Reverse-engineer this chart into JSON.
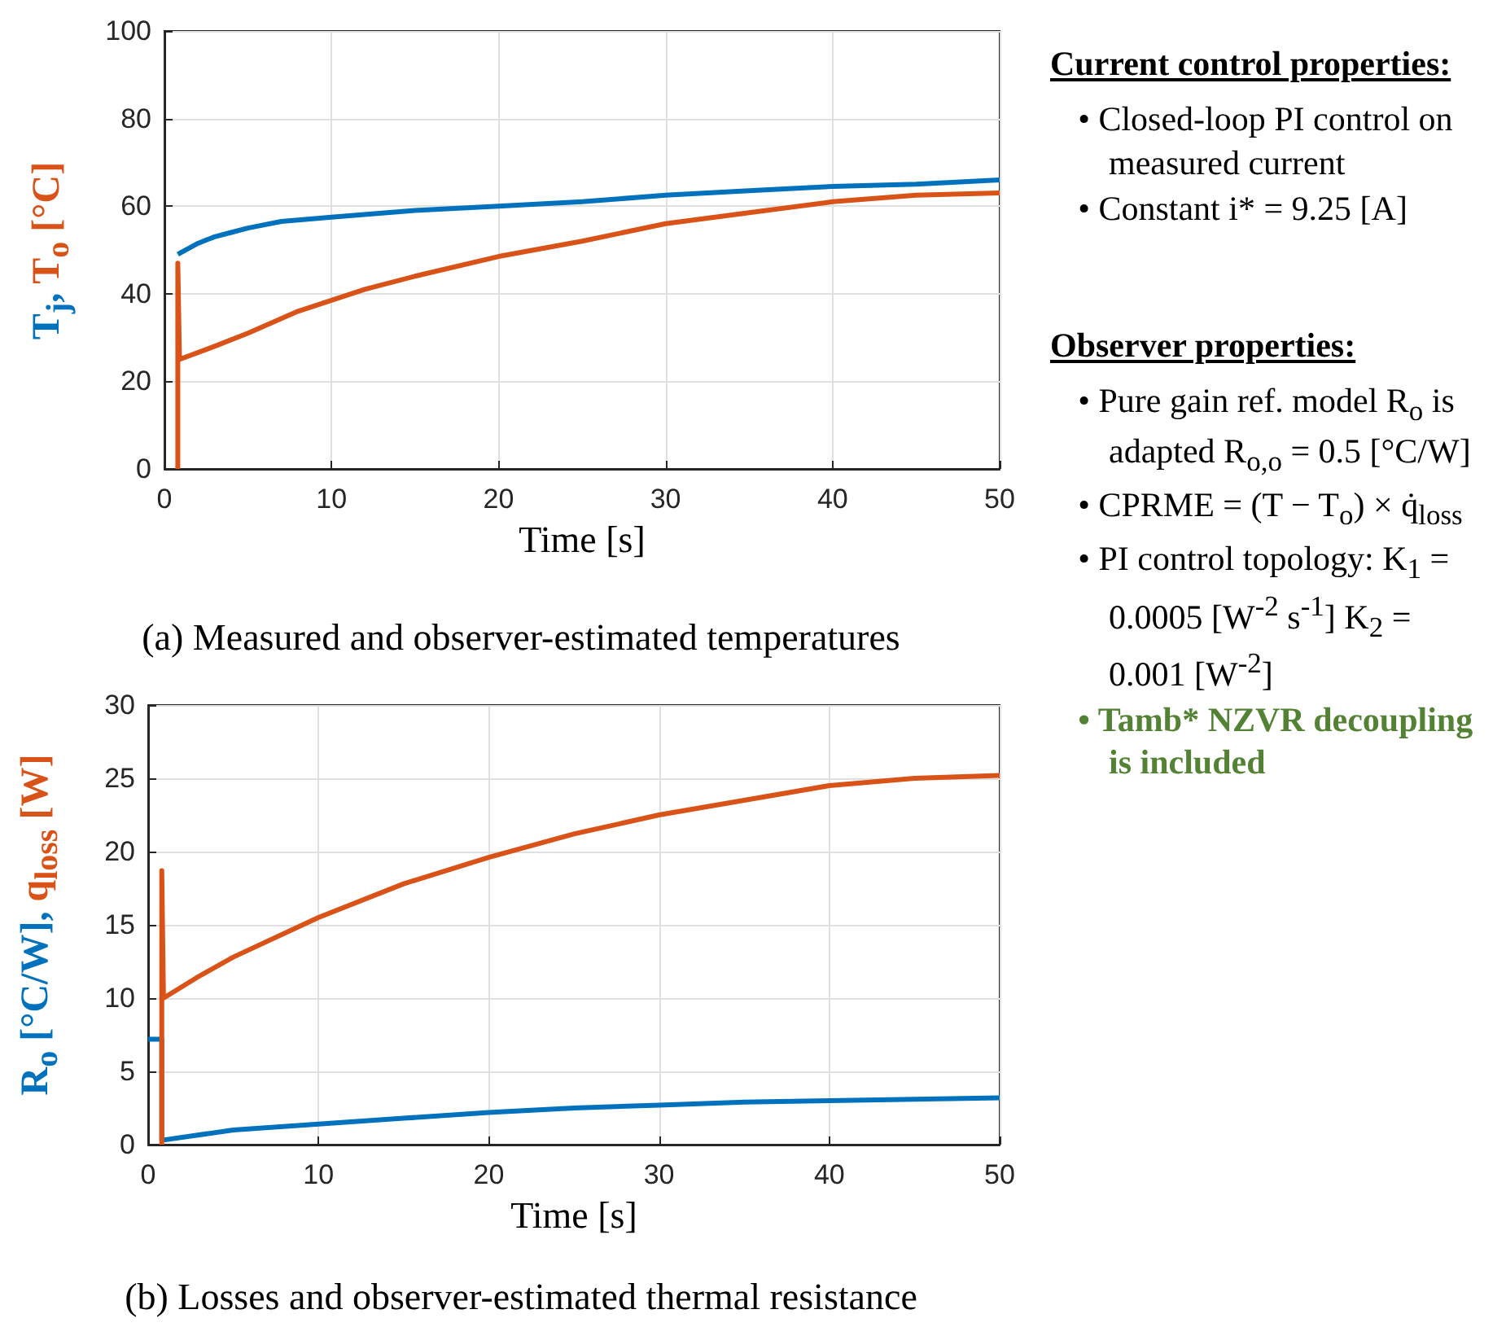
{
  "chart_data": [
    {
      "type": "line",
      "title": "(a) Measured and observer-estimated temperatures",
      "xlabel": "Time [s]",
      "ylabel": "T$_{j}$, T$_{o}$ [°C]",
      "xlim": [
        0,
        50
      ],
      "xticks": [
        0,
        10,
        20,
        30,
        40,
        50
      ],
      "ylim": [
        0,
        100
      ],
      "yticks": [
        0,
        20,
        40,
        60,
        80,
        100
      ],
      "grid": true,
      "marker": "none",
      "line_style": "solid",
      "series": [
        {
          "color": "#0072bd",
          "x": [
            0.8,
            2,
            3,
            4,
            5,
            7,
            10,
            15,
            20,
            25,
            30,
            35,
            40,
            45,
            50
          ],
          "values": [
            49,
            51.5,
            53,
            54,
            55,
            56.5,
            57.5,
            59,
            60,
            61,
            62.5,
            63.5,
            64.5,
            65,
            66
          ]
        },
        {
          "color": "#d95319",
          "x": [
            0.8,
            0.8,
            0.9,
            3,
            5,
            8,
            10,
            12,
            15,
            20,
            25,
            30,
            35,
            40,
            45,
            50
          ],
          "values": [
            0,
            47,
            25,
            28,
            31,
            36,
            38.5,
            41,
            44,
            48.5,
            52,
            56,
            58.5,
            61,
            62.5,
            63
          ]
        }
      ]
    },
    {
      "type": "line",
      "title": "(b) Losses and observer-estimated thermal resistance",
      "xlabel": "Time [s]",
      "ylabel": "R$_{o}$ [°C/W], q$_{loss}$ [W]",
      "xlim": [
        0,
        50
      ],
      "xticks": [
        0,
        10,
        20,
        30,
        40,
        50
      ],
      "ylim": [
        0,
        30
      ],
      "yticks": [
        0,
        5,
        10,
        15,
        20,
        25,
        30
      ],
      "grid": true,
      "marker": "none",
      "line_style": "solid",
      "series": [
        {
          "color": "#0072bd",
          "x": [
            0,
            0.8,
            0.8,
            5,
            10,
            15,
            20,
            25,
            30,
            35,
            40,
            45,
            50
          ],
          "values": [
            7.2,
            7.2,
            0.3,
            1,
            1.4,
            1.8,
            2.2,
            2.5,
            2.7,
            2.9,
            3,
            3.1,
            3.2
          ]
        },
        {
          "color": "#d95319",
          "x": [
            0.8,
            0.8,
            0.9,
            3,
            5,
            10,
            15,
            20,
            25,
            30,
            35,
            40,
            45,
            50
          ],
          "values": [
            0,
            18.7,
            10,
            11.5,
            12.8,
            15.5,
            17.8,
            19.6,
            21.2,
            22.5,
            23.5,
            24.5,
            25,
            25.2
          ]
        }
      ]
    },
    {
      "type": "other",
      "annotations": [
        "Current control properties:",
        "• Closed-loop PI control on measured current",
        "• Constant i* = 9.25 [A]",
        "Observer properties:",
        "• Pure gain ref. model R$_{o}$ is adapted R$_{o,o}$ = 0.5 [°C/W]",
        "• CPRME = (T − T$_{o}$) × q̇$_{loss}$",
        "• PI control topology: K$_{1}$ = 0.0005 [W$^{-2}$ s$^{-1}$] K$_{2}$ = 0.001 [W$^{-2}$]",
        "• Tamb* NZVR decoupling is included"
      ]
    }
  ]
}
